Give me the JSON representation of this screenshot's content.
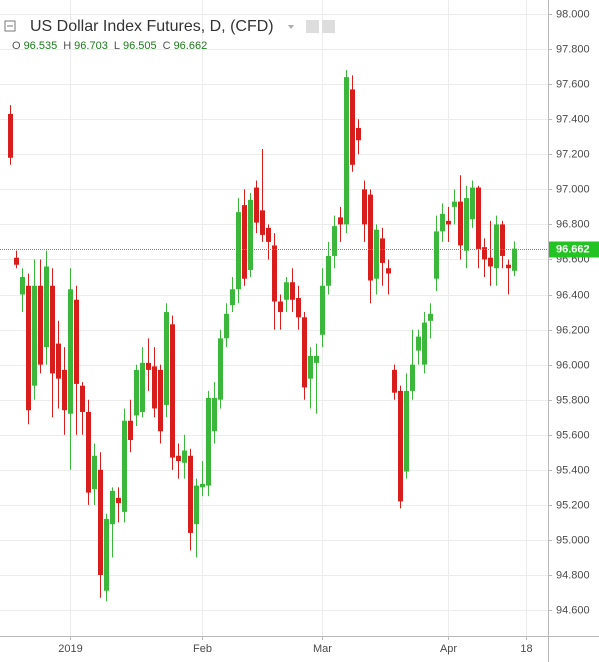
{
  "chart_data": {
    "type": "candlestick",
    "title": "US Dollar Index Futures, D, (CFD)",
    "ohlc_letters": [
      "O",
      "H",
      "L",
      "C"
    ],
    "categories": [
      null,
      null,
      null,
      null,
      null,
      null,
      null,
      null,
      null,
      null,
      null,
      null,
      null,
      null,
      null,
      null,
      null,
      null,
      null,
      null,
      null,
      null,
      null,
      null,
      null,
      null,
      null,
      null,
      null,
      null,
      null,
      null,
      null,
      null,
      null,
      null,
      null,
      null,
      null,
      null,
      null,
      null,
      null,
      null,
      null,
      null,
      null,
      null,
      null,
      null,
      null,
      null,
      null,
      null,
      null,
      null,
      null,
      null,
      null,
      null,
      null,
      null,
      null,
      null,
      null,
      null,
      null,
      null,
      null,
      null,
      null,
      null,
      null,
      null,
      null,
      null,
      null,
      null,
      null,
      null,
      null,
      null,
      null,
      null,
      null
    ],
    "open": [
      97.43,
      96.61,
      96.4,
      96.45,
      95.88,
      96.45,
      96.1,
      96.45,
      96.12,
      95.97,
      95.72,
      96.37,
      95.88,
      95.73,
      95.29,
      95.4,
      94.71,
      95.09,
      95.24,
      95.16,
      95.68,
      95.71,
      95.73,
      96.01,
      95.99,
      95.97,
      95.77,
      96.23,
      95.48,
      95.44,
      95.48,
      95.09,
      95.3,
      95.31,
      95.62,
      95.8,
      96.15,
      96.34,
      96.43,
      96.91,
      96.54,
      97.01,
      96.88,
      96.78,
      96.68,
      96.36,
      96.37,
      96.47,
      96.38,
      96.27,
      95.92,
      96.01,
      96.17,
      96.45,
      96.62,
      96.84,
      96.8,
      97.57,
      97.35,
      97.0,
      96.97,
      96.49,
      96.72,
      96.55,
      95.97,
      95.85,
      95.39,
      95.85,
      96.08,
      96.0,
      96.25,
      96.49,
      96.76,
      96.82,
      96.9,
      96.93,
      96.65,
      96.83,
      97.01,
      96.67,
      96.61,
      96.55,
      96.8,
      96.57,
      96.535
    ],
    "high": [
      97.48,
      96.65,
      96.55,
      96.52,
      96.6,
      96.6,
      96.65,
      96.55,
      96.25,
      96.1,
      96.55,
      96.45,
      95.9,
      95.8,
      95.55,
      95.5,
      95.15,
      95.3,
      95.3,
      95.75,
      95.8,
      96.0,
      96.1,
      96.15,
      96.1,
      96.0,
      96.35,
      96.28,
      95.55,
      95.6,
      95.52,
      95.35,
      95.45,
      95.85,
      95.9,
      96.2,
      96.35,
      96.5,
      96.95,
      97.0,
      96.98,
      97.05,
      97.23,
      96.8,
      96.75,
      96.4,
      96.5,
      96.55,
      96.45,
      96.3,
      96.1,
      96.12,
      96.55,
      96.7,
      96.85,
      96.9,
      97.68,
      97.65,
      97.4,
      97.05,
      97.0,
      96.8,
      96.78,
      96.6,
      96.0,
      95.88,
      95.95,
      96.2,
      96.2,
      96.3,
      96.35,
      96.85,
      96.92,
      96.9,
      97.0,
      97.08,
      97.02,
      97.05,
      97.02,
      96.72,
      96.82,
      96.85,
      96.82,
      96.6,
      96.703
    ],
    "low": [
      97.14,
      96.55,
      96.3,
      95.66,
      95.8,
      95.95,
      96.0,
      95.7,
      95.75,
      95.6,
      95.4,
      95.6,
      95.6,
      95.2,
      95.2,
      94.67,
      94.65,
      94.9,
      95.1,
      95.1,
      95.5,
      95.65,
      95.7,
      95.85,
      95.7,
      95.55,
      95.7,
      95.4,
      95.35,
      95.35,
      94.94,
      94.9,
      95.25,
      95.25,
      95.55,
      95.75,
      96.1,
      96.3,
      96.35,
      96.45,
      96.5,
      96.75,
      96.7,
      96.6,
      96.2,
      96.2,
      96.3,
      96.3,
      96.2,
      95.8,
      95.75,
      95.72,
      96.1,
      96.4,
      96.55,
      96.7,
      96.75,
      97.1,
      97.2,
      96.7,
      96.35,
      96.4,
      96.45,
      96.4,
      95.8,
      95.18,
      95.35,
      95.8,
      96.0,
      95.95,
      96.15,
      96.42,
      96.7,
      96.7,
      96.8,
      96.6,
      96.55,
      96.78,
      96.55,
      96.5,
      96.45,
      96.45,
      96.55,
      96.4,
      96.505
    ],
    "close": [
      97.18,
      96.57,
      96.5,
      95.74,
      96.45,
      96.0,
      96.56,
      95.95,
      95.92,
      95.74,
      96.43,
      95.89,
      95.73,
      95.27,
      95.48,
      94.8,
      95.12,
      95.28,
      95.21,
      95.68,
      95.57,
      95.97,
      96.01,
      95.97,
      95.75,
      95.62,
      96.3,
      95.47,
      95.45,
      95.51,
      95.04,
      95.31,
      95.32,
      95.81,
      95.81,
      96.15,
      96.29,
      96.43,
      96.87,
      96.49,
      96.94,
      96.81,
      96.74,
      96.7,
      96.36,
      96.3,
      96.47,
      96.37,
      96.27,
      95.87,
      96.05,
      96.05,
      96.45,
      96.62,
      96.79,
      96.8,
      97.64,
      97.14,
      97.28,
      96.8,
      96.48,
      96.77,
      96.58,
      96.52,
      95.84,
      95.22,
      95.85,
      96.0,
      96.16,
      96.24,
      96.29,
      96.76,
      96.86,
      96.8,
      96.93,
      96.68,
      96.95,
      97.01,
      96.66,
      96.6,
      96.56,
      96.8,
      96.62,
      96.55,
      96.662
    ],
    "up_color": "#3bb83b",
    "down_color": "#d91c1c",
    "last_price_color": "#22c322",
    "xlim": [
      -1.7,
      89.7
    ],
    "xticks": [
      {
        "value": 10,
        "label": "2019"
      },
      {
        "value": 32,
        "label": "Feb"
      },
      {
        "value": 52,
        "label": "Mar"
      },
      {
        "value": 73,
        "label": "Apr"
      },
      {
        "value": 86,
        "label": "18"
      }
    ],
    "ylim": [
      94.452,
      98.08
    ],
    "yticks": [
      {
        "value": 94.6,
        "label": "94.600"
      },
      {
        "value": 94.8,
        "label": "94.800"
      },
      {
        "value": 95.0,
        "label": "95.000"
      },
      {
        "value": 95.2,
        "label": "95.200"
      },
      {
        "value": 95.4,
        "label": "95.400"
      },
      {
        "value": 95.6,
        "label": "95.600"
      },
      {
        "value": 95.8,
        "label": "95.800"
      },
      {
        "value": 96.0,
        "label": "96.000"
      },
      {
        "value": 96.2,
        "label": "96.200"
      },
      {
        "value": 96.4,
        "label": "96.400"
      },
      {
        "value": 96.6,
        "label": "96.600"
      },
      {
        "value": 96.8,
        "label": "96.800"
      },
      {
        "value": 97.0,
        "label": "97.000"
      },
      {
        "value": 97.2,
        "label": "97.200"
      },
      {
        "value": 97.4,
        "label": "97.400"
      },
      {
        "value": 97.6,
        "label": "97.600"
      },
      {
        "value": 97.8,
        "label": "97.800"
      },
      {
        "value": 98.0,
        "label": "98.000"
      }
    ],
    "grid": true
  }
}
